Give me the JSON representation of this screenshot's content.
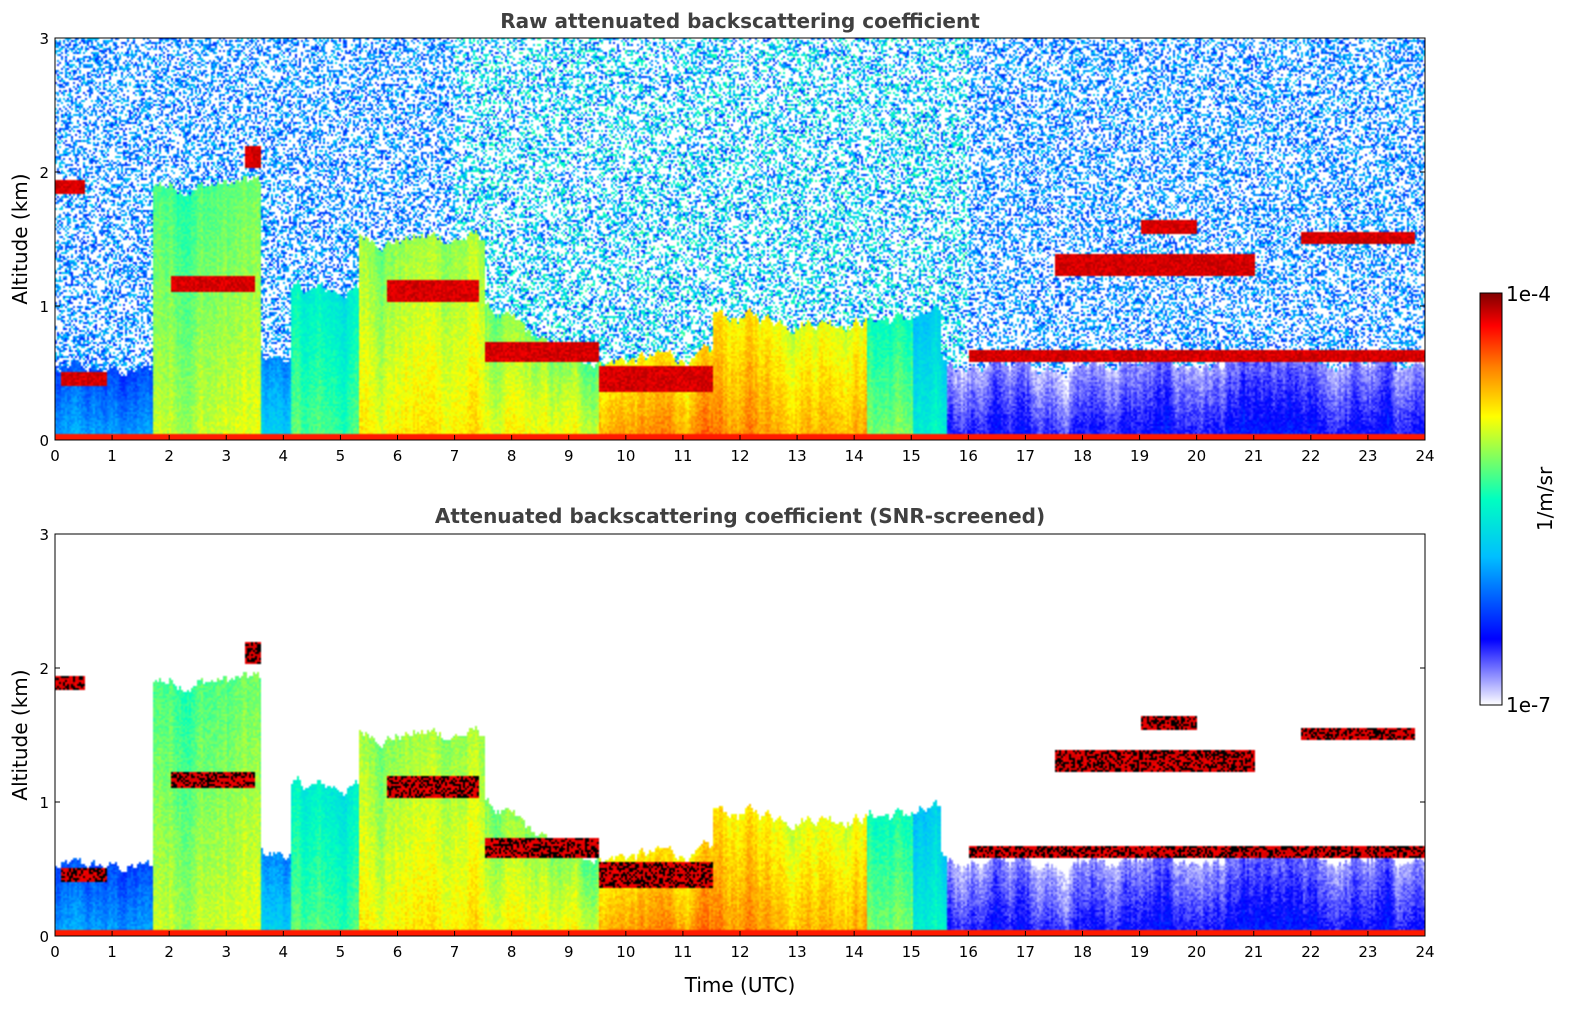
{
  "chart_data": [
    {
      "type": "heatmap",
      "title": "Raw attenuated backscattering coefficient",
      "xlabel": "",
      "ylabel": "Altitude (km)",
      "xlim": [
        0,
        24
      ],
      "ylim": [
        0,
        3
      ],
      "xticks": [
        "0",
        "1",
        "2",
        "3",
        "4",
        "5",
        "6",
        "7",
        "8",
        "9",
        "10",
        "11",
        "12",
        "13",
        "14",
        "15",
        "16",
        "17",
        "18",
        "19",
        "20",
        "21",
        "22",
        "23",
        "24"
      ],
      "yticks": [
        "0",
        "1",
        "2",
        "3"
      ],
      "screened": false
    },
    {
      "type": "heatmap",
      "title": "Attenuated backscattering coefficient (SNR-screened)",
      "xlabel": "Time (UTC)",
      "ylabel": "Altitude (km)",
      "xlim": [
        0,
        24
      ],
      "ylim": [
        0,
        3
      ],
      "xticks": [
        "0",
        "1",
        "2",
        "3",
        "4",
        "5",
        "6",
        "7",
        "8",
        "9",
        "10",
        "11",
        "12",
        "13",
        "14",
        "15",
        "16",
        "17",
        "18",
        "19",
        "20",
        "21",
        "22",
        "23",
        "24"
      ],
      "yticks": [
        "0",
        "1",
        "2",
        "3"
      ],
      "screened": true
    }
  ],
  "colorbar": {
    "label": "1/m/sr",
    "max_label": "1e-4",
    "min_label": "1e-7",
    "scale": "log",
    "range": [
      1e-07,
      0.0001
    ],
    "colormap": [
      "#ffffff",
      "#0000ff",
      "#00bfff",
      "#00ffc0",
      "#ffff00",
      "#ff8000",
      "#ff0000",
      "#800000"
    ]
  }
}
